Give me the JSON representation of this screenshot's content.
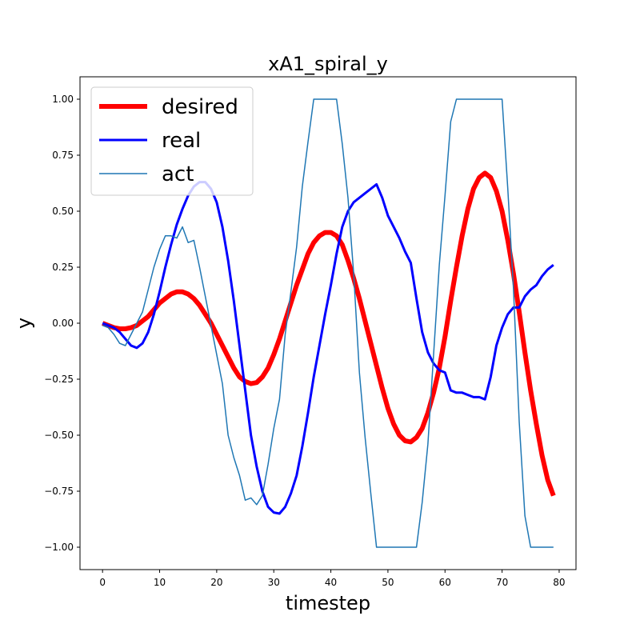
{
  "chart_data": {
    "type": "line",
    "title": "xA1_spiral_y",
    "xlabel": "timestep",
    "ylabel": "y",
    "xlim": [
      -3.95,
      82.95
    ],
    "ylim": [
      -1.1,
      1.1
    ],
    "xticks": [
      0,
      10,
      20,
      30,
      40,
      50,
      60,
      70,
      80
    ],
    "yticks": [
      -1.0,
      -0.75,
      -0.5,
      -0.25,
      0.0,
      0.25,
      0.5,
      0.75,
      1.0
    ],
    "xtick_labels": [
      "0",
      "10",
      "20",
      "30",
      "40",
      "50",
      "60",
      "70",
      "80"
    ],
    "ytick_labels": [
      "−1.00",
      "−0.75",
      "−0.50",
      "−0.25",
      "0.00",
      "0.25",
      "0.50",
      "0.75",
      "1.00"
    ],
    "grid": false,
    "legend_position": "top-left",
    "series": [
      {
        "name": "desired",
        "color": "#ff0000",
        "width": 6,
        "x": [
          0,
          1,
          2,
          3,
          4,
          5,
          6,
          7,
          8,
          9,
          10,
          11,
          12,
          13,
          14,
          15,
          16,
          17,
          18,
          19,
          20,
          21,
          22,
          23,
          24,
          25,
          26,
          27,
          28,
          29,
          30,
          31,
          32,
          33,
          34,
          35,
          36,
          37,
          38,
          39,
          40,
          41,
          42,
          43,
          44,
          45,
          46,
          47,
          48,
          49,
          50,
          51,
          52,
          53,
          54,
          55,
          56,
          57,
          58,
          59,
          60,
          61,
          62,
          63,
          64,
          65,
          66,
          67,
          68,
          69,
          70,
          71,
          72,
          73,
          74,
          75,
          76,
          77,
          78,
          79
        ],
        "values": [
          0.0,
          -0.01,
          -0.02,
          -0.025,
          -0.025,
          -0.02,
          -0.01,
          0.01,
          0.03,
          0.06,
          0.09,
          0.11,
          0.13,
          0.14,
          0.14,
          0.13,
          0.11,
          0.08,
          0.04,
          0.0,
          -0.05,
          -0.1,
          -0.15,
          -0.2,
          -0.24,
          -0.26,
          -0.27,
          -0.265,
          -0.24,
          -0.2,
          -0.14,
          -0.07,
          0.01,
          0.09,
          0.17,
          0.24,
          0.31,
          0.36,
          0.39,
          0.405,
          0.405,
          0.39,
          0.35,
          0.28,
          0.2,
          0.11,
          0.01,
          -0.09,
          -0.19,
          -0.29,
          -0.38,
          -0.45,
          -0.5,
          -0.525,
          -0.53,
          -0.51,
          -0.47,
          -0.4,
          -0.31,
          -0.2,
          -0.06,
          0.1,
          0.25,
          0.39,
          0.51,
          0.6,
          0.65,
          0.67,
          0.65,
          0.59,
          0.5,
          0.37,
          0.22,
          0.05,
          -0.13,
          -0.3,
          -0.45,
          -0.59,
          -0.7,
          -0.77
        ]
      },
      {
        "name": "real",
        "color": "#0000ff",
        "width": 3,
        "x": [
          0,
          1,
          2,
          3,
          4,
          5,
          6,
          7,
          8,
          9,
          10,
          11,
          12,
          13,
          14,
          15,
          16,
          17,
          18,
          19,
          20,
          21,
          22,
          23,
          24,
          25,
          26,
          27,
          28,
          29,
          30,
          31,
          32,
          33,
          34,
          35,
          36,
          37,
          38,
          39,
          40,
          41,
          42,
          43,
          44,
          45,
          46,
          47,
          48,
          49,
          50,
          51,
          52,
          53,
          54,
          55,
          56,
          57,
          58,
          59,
          60,
          61,
          62,
          63,
          64,
          65,
          66,
          67,
          68,
          69,
          70,
          71,
          72,
          73,
          74,
          75,
          76,
          77,
          78,
          79
        ],
        "values": [
          0.0,
          -0.01,
          -0.02,
          -0.04,
          -0.07,
          -0.1,
          -0.11,
          -0.09,
          -0.04,
          0.04,
          0.14,
          0.25,
          0.35,
          0.44,
          0.51,
          0.57,
          0.61,
          0.63,
          0.63,
          0.6,
          0.54,
          0.43,
          0.28,
          0.1,
          -0.1,
          -0.3,
          -0.5,
          -0.64,
          -0.75,
          -0.82,
          -0.845,
          -0.85,
          -0.82,
          -0.76,
          -0.68,
          -0.55,
          -0.4,
          -0.24,
          -0.1,
          0.04,
          0.17,
          0.31,
          0.43,
          0.5,
          0.54,
          0.56,
          0.58,
          0.6,
          0.62,
          0.56,
          0.48,
          0.43,
          0.38,
          0.32,
          0.27,
          0.11,
          -0.04,
          -0.13,
          -0.18,
          -0.21,
          -0.22,
          -0.3,
          -0.31,
          -0.31,
          -0.32,
          -0.33,
          -0.33,
          -0.34,
          -0.24,
          -0.1,
          -0.02,
          0.04,
          0.07,
          0.07,
          0.12,
          0.15,
          0.17,
          0.21,
          0.24,
          0.26
        ]
      },
      {
        "name": "act",
        "color": "#1f77b4",
        "width": 1.5,
        "x": [
          0,
          1,
          2,
          3,
          4,
          5,
          6,
          7,
          8,
          9,
          10,
          11,
          12,
          13,
          14,
          15,
          16,
          17,
          18,
          19,
          20,
          21,
          22,
          23,
          24,
          25,
          26,
          27,
          28,
          29,
          30,
          31,
          32,
          33,
          34,
          35,
          36,
          37,
          38,
          39,
          40,
          41,
          42,
          43,
          44,
          45,
          46,
          47,
          48,
          49,
          50,
          51,
          52,
          53,
          54,
          55,
          56,
          57,
          58,
          59,
          60,
          61,
          62,
          63,
          64,
          65,
          66,
          67,
          68,
          69,
          70,
          71,
          72,
          73,
          74,
          75,
          76,
          77,
          78,
          79
        ],
        "values": [
          -0.01,
          -0.02,
          -0.05,
          -0.09,
          -0.1,
          -0.05,
          0.0,
          0.05,
          0.15,
          0.25,
          0.33,
          0.39,
          0.39,
          0.38,
          0.43,
          0.36,
          0.37,
          0.25,
          0.12,
          -0.01,
          -0.14,
          -0.27,
          -0.5,
          -0.6,
          -0.68,
          -0.79,
          -0.78,
          -0.81,
          -0.77,
          -0.63,
          -0.47,
          -0.34,
          -0.05,
          0.14,
          0.34,
          0.61,
          0.81,
          1.0,
          1.0,
          1.0,
          1.0,
          1.0,
          0.8,
          0.56,
          0.22,
          -0.22,
          -0.51,
          -0.76,
          -1.0,
          -1.0,
          -1.0,
          -1.0,
          -1.0,
          -1.0,
          -1.0,
          -1.0,
          -0.8,
          -0.54,
          -0.14,
          0.26,
          0.57,
          0.9,
          1.0,
          1.0,
          1.0,
          1.0,
          1.0,
          1.0,
          1.0,
          1.0,
          1.0,
          0.6,
          0.15,
          -0.44,
          -0.86,
          -1.0,
          -1.0,
          -1.0,
          -1.0,
          -1.0
        ]
      }
    ]
  }
}
